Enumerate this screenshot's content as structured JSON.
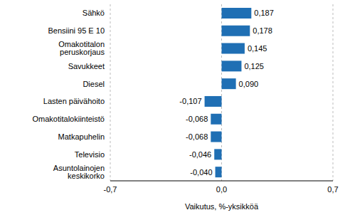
{
  "chart_data": {
    "type": "bar",
    "orientation": "horizontal",
    "categories": [
      "Sähkö",
      "Bensiini 95 E 10",
      "Omakotitalon peruskorjaus",
      "Savukkeet",
      "Diesel",
      "Lasten päivähoito",
      "Omakotitalokiinteistö",
      "Matkapuhelin",
      "Televisio",
      "Asuntolainojen keskikorko"
    ],
    "values": [
      0.187,
      0.178,
      0.145,
      0.125,
      0.09,
      -0.107,
      -0.068,
      -0.068,
      -0.046,
      -0.04
    ],
    "value_labels": [
      "0,187",
      "0,178",
      "0,145",
      "0,125",
      "0,090",
      "-0,107",
      "-0,068",
      "-0,068",
      "-0,046",
      "-0,040"
    ],
    "color": "#1f6fb4",
    "xlim": [
      -0.7,
      0.7
    ],
    "xticks": [
      {
        "value": -0.7,
        "label": "-0,7"
      },
      {
        "value": 0,
        "label": "0,0"
      },
      {
        "value": 0.7,
        "label": "0,7"
      }
    ],
    "x_label": "Vaikutus, %-yksikköä",
    "grid": true,
    "data_labels": true
  }
}
